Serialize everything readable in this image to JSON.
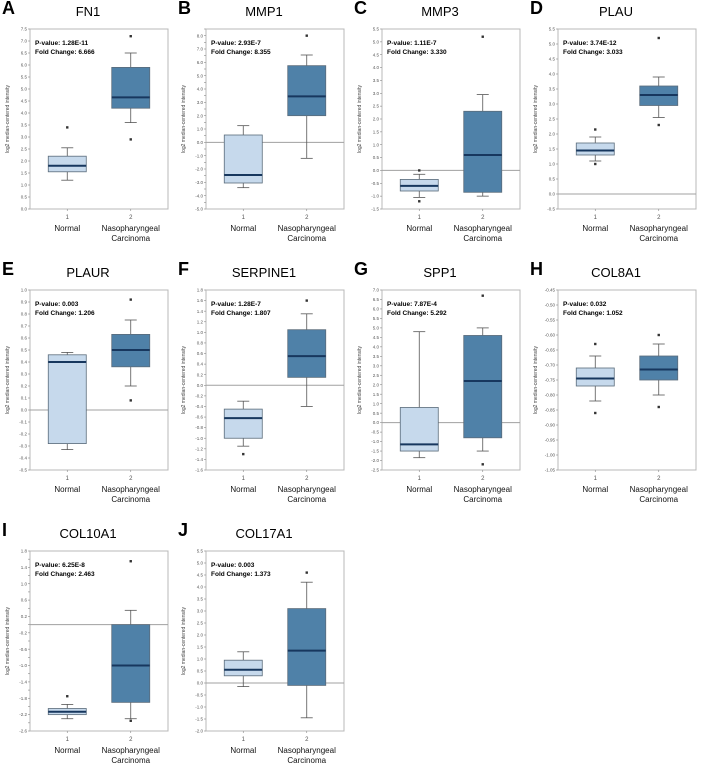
{
  "colors": {
    "box_light": "#c6d9ec",
    "box_dark": "#4f81a8",
    "median": "#17375e",
    "whisker": "#555555",
    "plot_border": "#b8b8b8",
    "zero_line": "#a0a0a0"
  },
  "shared": {
    "ylabel": "log2 median-centered intensity",
    "p_label": "P-value:",
    "fc_label": "Fold Change:",
    "x_tick_labels": [
      "1",
      "2"
    ],
    "categories": [
      "Normal",
      "Nasopharyngeal Carcinoma"
    ]
  },
  "chart_data": [
    {
      "type": "box",
      "panel": "A",
      "title": "FN1",
      "p_value": "1.28E-11",
      "fold_change": "6.666",
      "ylim": [
        0,
        7.5
      ],
      "ytick_step": 0.5,
      "groups": [
        {
          "category": "Normal",
          "x_tick": "1",
          "color": "light",
          "whisker_low": 1.2,
          "q1": 1.55,
          "median": 1.8,
          "q3": 2.2,
          "whisker_high": 2.55,
          "outliers": [
            3.4
          ]
        },
        {
          "category": "Nasopharyngeal Carcinoma",
          "x_tick": "2",
          "color": "dark",
          "whisker_low": 3.6,
          "q1": 4.2,
          "median": 4.65,
          "q3": 5.9,
          "whisker_high": 6.5,
          "outliers": [
            7.2,
            2.9
          ]
        }
      ]
    },
    {
      "type": "box",
      "panel": "B",
      "title": "MMP1",
      "p_value": "2.93E-7",
      "fold_change": "8.355",
      "ylim": [
        -5,
        8.5
      ],
      "ytick_step": 0.5,
      "groups": [
        {
          "category": "Normal",
          "x_tick": "1",
          "color": "light",
          "whisker_low": -3.4,
          "q1": -3.05,
          "median": -2.45,
          "q3": 0.55,
          "whisker_high": 1.25,
          "outliers": []
        },
        {
          "category": "Nasopharyngeal Carcinoma",
          "x_tick": "2",
          "color": "dark",
          "whisker_low": -1.2,
          "q1": 2.0,
          "median": 3.45,
          "q3": 5.75,
          "whisker_high": 6.55,
          "outliers": [
            8.0
          ]
        }
      ]
    },
    {
      "type": "box",
      "panel": "C",
      "title": "MMP3",
      "p_value": "1.11E-7",
      "fold_change": "3.330",
      "ylim": [
        -1.5,
        5.5
      ],
      "ytick_step": 0.5,
      "groups": [
        {
          "category": "Normal",
          "x_tick": "1",
          "color": "light",
          "whisker_low": -1.05,
          "q1": -0.8,
          "median": -0.6,
          "q3": -0.35,
          "whisker_high": -0.15,
          "outliers": [
            -1.2,
            0.0
          ]
        },
        {
          "category": "Nasopharyngeal Carcinoma",
          "x_tick": "2",
          "color": "dark",
          "whisker_low": -1.0,
          "q1": -0.85,
          "median": 0.6,
          "q3": 2.3,
          "whisker_high": 2.95,
          "outliers": [
            5.2
          ]
        }
      ]
    },
    {
      "type": "box",
      "panel": "D",
      "title": "PLAU",
      "p_value": "3.74E-12",
      "fold_change": "3.033",
      "ylim": [
        -0.5,
        5.5
      ],
      "ytick_step": 0.5,
      "groups": [
        {
          "category": "Normal",
          "x_tick": "1",
          "color": "light",
          "whisker_low": 1.1,
          "q1": 1.3,
          "median": 1.45,
          "q3": 1.7,
          "whisker_high": 1.9,
          "outliers": [
            2.15,
            1.0
          ]
        },
        {
          "category": "Nasopharyngeal Carcinoma",
          "x_tick": "2",
          "color": "dark",
          "whisker_low": 2.55,
          "q1": 2.95,
          "median": 3.3,
          "q3": 3.6,
          "whisker_high": 3.9,
          "outliers": [
            5.2,
            2.3
          ]
        }
      ]
    },
    {
      "type": "box",
      "panel": "E",
      "title": "PLAUR",
      "p_value": "0.003",
      "fold_change": "1.206",
      "ylim": [
        -0.5,
        1.0
      ],
      "ytick_step": 0.1,
      "groups": [
        {
          "category": "Normal",
          "x_tick": "1",
          "color": "light",
          "whisker_low": -0.33,
          "q1": -0.28,
          "median": 0.4,
          "q3": 0.46,
          "whisker_high": 0.48,
          "outliers": []
        },
        {
          "category": "Nasopharyngeal Carcinoma",
          "x_tick": "2",
          "color": "dark",
          "whisker_low": 0.2,
          "q1": 0.36,
          "median": 0.5,
          "q3": 0.63,
          "whisker_high": 0.75,
          "outliers": [
            0.92,
            0.08
          ]
        }
      ]
    },
    {
      "type": "box",
      "panel": "F",
      "title": "SERPINE1",
      "p_value": "1.28E-7",
      "fold_change": "1.807",
      "ylim": [
        -1.6,
        1.8
      ],
      "ytick_step": 0.2,
      "groups": [
        {
          "category": "Normal",
          "x_tick": "1",
          "color": "light",
          "whisker_low": -1.15,
          "q1": -1.0,
          "median": -0.62,
          "q3": -0.45,
          "whisker_high": -0.3,
          "outliers": [
            -1.3
          ]
        },
        {
          "category": "Nasopharyngeal Carcinoma",
          "x_tick": "2",
          "color": "dark",
          "whisker_low": -0.4,
          "q1": 0.15,
          "median": 0.55,
          "q3": 1.05,
          "whisker_high": 1.35,
          "outliers": [
            1.6
          ]
        }
      ]
    },
    {
      "type": "box",
      "panel": "G",
      "title": "SPP1",
      "p_value": "7.87E-4",
      "fold_change": "5.292",
      "ylim": [
        -2.5,
        7.0
      ],
      "ytick_step": 0.5,
      "groups": [
        {
          "category": "Normal",
          "x_tick": "1",
          "color": "light",
          "whisker_low": -1.85,
          "q1": -1.5,
          "median": -1.15,
          "q3": 0.8,
          "whisker_high": 4.8,
          "outliers": []
        },
        {
          "category": "Nasopharyngeal Carcinoma",
          "x_tick": "2",
          "color": "dark",
          "whisker_low": -1.5,
          "q1": -0.8,
          "median": 2.2,
          "q3": 4.6,
          "whisker_high": 5.0,
          "outliers": [
            6.7,
            -2.2
          ]
        }
      ]
    },
    {
      "type": "box",
      "panel": "H",
      "title": "COL8A1",
      "p_value": "0.032",
      "fold_change": "1.052",
      "ylim": [
        -1.05,
        -0.45
      ],
      "ytick_step": 0.05,
      "groups": [
        {
          "category": "Normal",
          "x_tick": "1",
          "color": "light",
          "whisker_low": -0.82,
          "q1": -0.77,
          "median": -0.745,
          "q3": -0.71,
          "whisker_high": -0.67,
          "outliers": [
            -0.86,
            -0.63
          ]
        },
        {
          "category": "Nasopharyngeal Carcinoma",
          "x_tick": "2",
          "color": "dark",
          "whisker_low": -0.8,
          "q1": -0.75,
          "median": -0.715,
          "q3": -0.67,
          "whisker_high": -0.63,
          "outliers": [
            -0.84,
            -0.6
          ]
        }
      ]
    },
    {
      "type": "box",
      "panel": "I",
      "title": "COL10A1",
      "p_value": "6.25E-8",
      "fold_change": "2.463",
      "ylim": [
        -2.6,
        1.8
      ],
      "ytick_step": 0.2,
      "groups": [
        {
          "category": "Normal",
          "x_tick": "1",
          "color": "light",
          "whisker_low": -2.3,
          "q1": -2.2,
          "median": -2.13,
          "q3": -2.05,
          "whisker_high": -1.95,
          "outliers": [
            -1.75
          ]
        },
        {
          "category": "Nasopharyngeal Carcinoma",
          "x_tick": "2",
          "color": "dark",
          "whisker_low": -2.3,
          "q1": -1.9,
          "median": -1.0,
          "q3": 0.0,
          "whisker_high": 0.35,
          "outliers": [
            1.55,
            -2.35
          ]
        }
      ]
    },
    {
      "type": "box",
      "panel": "J",
      "title": "COL17A1",
      "p_value": "0.003",
      "fold_change": "1.373",
      "ylim": [
        -2.0,
        5.5
      ],
      "ytick_step": 0.5,
      "groups": [
        {
          "category": "Normal",
          "x_tick": "1",
          "color": "light",
          "whisker_low": -0.15,
          "q1": 0.3,
          "median": 0.55,
          "q3": 0.95,
          "whisker_high": 1.3,
          "outliers": []
        },
        {
          "category": "Nasopharyngeal Carcinoma",
          "x_tick": "2",
          "color": "dark",
          "whisker_low": -1.45,
          "q1": -0.1,
          "median": 1.35,
          "q3": 3.1,
          "whisker_high": 4.2,
          "outliers": [
            4.6
          ]
        }
      ]
    }
  ]
}
